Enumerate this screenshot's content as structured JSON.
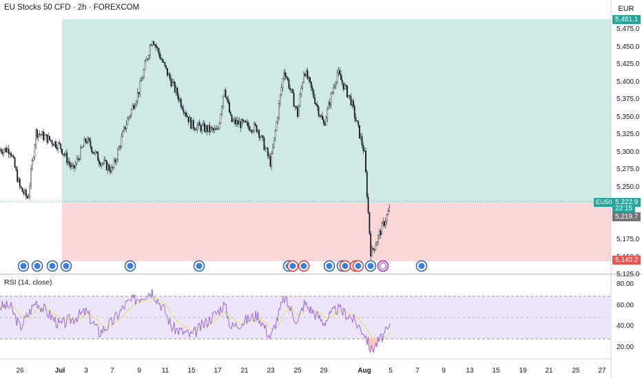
{
  "header": {
    "title": "EU Stocks 50 CFD · 2h · FOREXCOM",
    "currency": "EUR"
  },
  "price_scale": {
    "ticks": [
      "5,475.0",
      "5,450.0",
      "5,425.0",
      "5,400.0",
      "5,375.0",
      "5,350.0",
      "5,325.0",
      "5,300.0",
      "5,275.0",
      "5,250.0",
      "5,175.0",
      "5,150.0",
      "5,125.0"
    ],
    "target_label": "5,481.1",
    "symbol": "EU50",
    "last_price": "5,222.9",
    "countdown": "22:15",
    "entry_label": "5,219.7",
    "stop_label": "5,140.2"
  },
  "rsi_panel": {
    "title": "RSI (14, close)",
    "ticks": [
      "80.00",
      "60.00",
      "40.00",
      "20.00"
    ],
    "upper_band": 70,
    "lower_band": 30,
    "mid": 50
  },
  "time_axis": {
    "ticks": [
      {
        "label": "26",
        "bold": false
      },
      {
        "label": "Jul",
        "bold": true
      },
      {
        "label": "3",
        "bold": false
      },
      {
        "label": "7",
        "bold": false
      },
      {
        "label": "9",
        "bold": false
      },
      {
        "label": "11",
        "bold": false
      },
      {
        "label": "15",
        "bold": false
      },
      {
        "label": "17",
        "bold": false
      },
      {
        "label": "21",
        "bold": false
      },
      {
        "label": "23",
        "bold": false
      },
      {
        "label": "25",
        "bold": false
      },
      {
        "label": "29",
        "bold": false
      },
      {
        "label": "Aug",
        "bold": true
      },
      {
        "label": "5",
        "bold": false
      },
      {
        "label": "7",
        "bold": false
      },
      {
        "label": "9",
        "bold": false
      },
      {
        "label": "13",
        "bold": false
      },
      {
        "label": "15",
        "bold": false
      },
      {
        "label": "19",
        "bold": false
      },
      {
        "label": "21",
        "bold": false
      },
      {
        "label": "25",
        "bold": false
      },
      {
        "label": "27",
        "bold": false
      }
    ]
  },
  "colors": {
    "profit_zone": "#cfeae5",
    "loss_zone": "#fbd7d7",
    "candle": "#131722",
    "rsi_line": "#9b6bd0",
    "rsi_ma": "#e8e07a",
    "rsi_band": "#ede6fa",
    "badge_green": "#26a69a",
    "badge_red": "#ef5350",
    "badge_gray": "#757575",
    "event_blue": "#2b5fb0",
    "event_red": "#e53935",
    "event_purple": "#9c27b0"
  },
  "chart_data": {
    "type": "candlestick",
    "title": "EU Stocks 50 CFD · 2h · FOREXCOM",
    "x_range": [
      "Jun 25",
      "Aug 27"
    ],
    "ylim": [
      5125,
      5485
    ],
    "long_position": {
      "entry": 5219.7,
      "target": 5481.1,
      "stop": 5140.2
    },
    "last_price": 5222.9,
    "price_path": [
      {
        "x": "Jun 25",
        "y": 5305
      },
      {
        "x": "Jun 26",
        "y": 5250
      },
      {
        "x": "Jun 27",
        "y": 5235
      },
      {
        "x": "Jun 28",
        "y": 5330
      },
      {
        "x": "Jul 1",
        "y": 5310
      },
      {
        "x": "Jul 2",
        "y": 5275
      },
      {
        "x": "Jul 3",
        "y": 5320
      },
      {
        "x": "Jul 5",
        "y": 5290
      },
      {
        "x": "Jul 7",
        "y": 5275
      },
      {
        "x": "Jul 8",
        "y": 5340
      },
      {
        "x": "Jul 9",
        "y": 5390
      },
      {
        "x": "Jul 10",
        "y": 5465
      },
      {
        "x": "Jul 11",
        "y": 5420
      },
      {
        "x": "Jul 12",
        "y": 5400
      },
      {
        "x": "Jul 15",
        "y": 5340
      },
      {
        "x": "Jul 17",
        "y": 5330
      },
      {
        "x": "Jul 18",
        "y": 5395
      },
      {
        "x": "Jul 19",
        "y": 5345
      },
      {
        "x": "Jul 22",
        "y": 5335
      },
      {
        "x": "Jul 23",
        "y": 5285
      },
      {
        "x": "Jul 24",
        "y": 5420
      },
      {
        "x": "Jul 25",
        "y": 5355
      },
      {
        "x": "Jul 26",
        "y": 5420
      },
      {
        "x": "Jul 29",
        "y": 5340
      },
      {
        "x": "Jul 30",
        "y": 5415
      },
      {
        "x": "Jul 31",
        "y": 5375
      },
      {
        "x": "Aug 1",
        "y": 5300
      },
      {
        "x": "Aug 2",
        "y": 5155
      },
      {
        "x": "Aug 5",
        "y": 5222.9
      }
    ],
    "rsi": {
      "name": "RSI (14, close)",
      "ylim": [
        10,
        90
      ],
      "bands": [
        30,
        50,
        70
      ],
      "values": [
        {
          "x": "Jun 25",
          "y": 60
        },
        {
          "x": "Jun 26",
          "y": 40
        },
        {
          "x": "Jun 27",
          "y": 52
        },
        {
          "x": "Jun 28",
          "y": 65
        },
        {
          "x": "Jul 1",
          "y": 42
        },
        {
          "x": "Jul 3",
          "y": 55
        },
        {
          "x": "Jul 5",
          "y": 35
        },
        {
          "x": "Jul 7",
          "y": 45
        },
        {
          "x": "Jul 8",
          "y": 62
        },
        {
          "x": "Jul 10",
          "y": 75
        },
        {
          "x": "Jul 11",
          "y": 55
        },
        {
          "x": "Jul 12",
          "y": 40
        },
        {
          "x": "Jul 15",
          "y": 32
        },
        {
          "x": "Jul 17",
          "y": 55
        },
        {
          "x": "Jul 18",
          "y": 62
        },
        {
          "x": "Jul 19",
          "y": 40
        },
        {
          "x": "Jul 22",
          "y": 52
        },
        {
          "x": "Jul 23",
          "y": 30
        },
        {
          "x": "Jul 24",
          "y": 68
        },
        {
          "x": "Jul 25",
          "y": 45
        },
        {
          "x": "Jul 26",
          "y": 63
        },
        {
          "x": "Jul 29",
          "y": 45
        },
        {
          "x": "Jul 30",
          "y": 58
        },
        {
          "x": "Jul 31",
          "y": 50
        },
        {
          "x": "Aug 1",
          "y": 35
        },
        {
          "x": "Aug 2",
          "y": 18
        },
        {
          "x": "Aug 5",
          "y": 40
        }
      ]
    }
  }
}
